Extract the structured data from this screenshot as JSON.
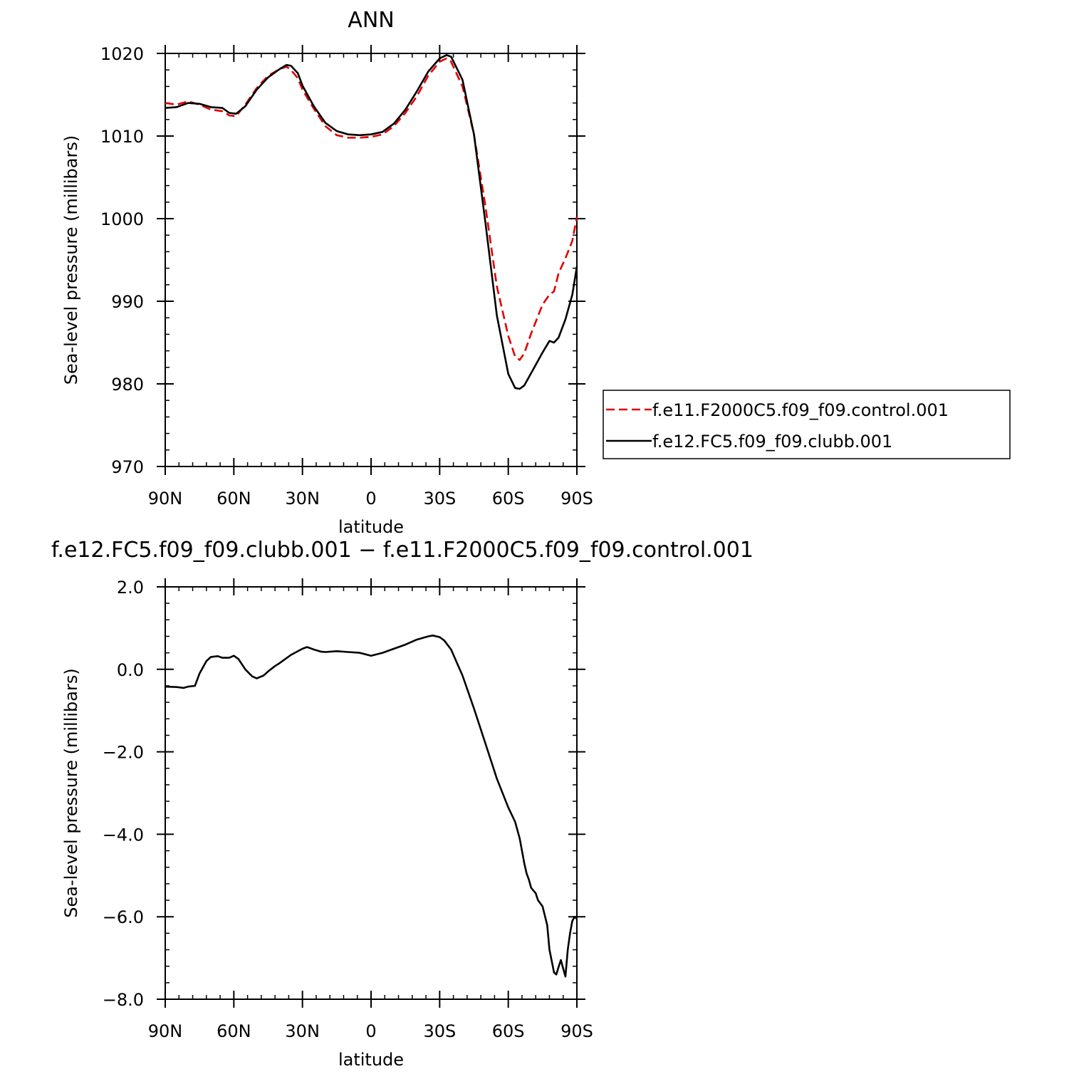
{
  "chart_data": [
    {
      "type": "line",
      "title": "ANN",
      "xlabel": "latitude",
      "ylabel": "Sea-level pressure (millibars)",
      "x_ticks": [
        "90N",
        "60N",
        "30N",
        "0",
        "30S",
        "60S",
        "90S"
      ],
      "y_ticks": [
        "970",
        "980",
        "990",
        "1000",
        "1010",
        "1020"
      ],
      "xlim": [
        90,
        -90
      ],
      "ylim": [
        970,
        1020
      ],
      "grid": false,
      "legend_position": "right",
      "series": [
        {
          "name": "f.e11.F2000C5.f09_f09.control.001",
          "color": "#e00000",
          "dash": "dashed",
          "x": [
            90,
            85,
            80,
            75,
            70,
            65,
            62,
            59,
            55,
            50,
            45,
            40,
            37,
            35,
            32,
            30,
            25,
            20,
            15,
            10,
            5,
            0,
            -5,
            -10,
            -15,
            -20,
            -25,
            -30,
            -33,
            -35,
            -40,
            -45,
            -50,
            -55,
            -60,
            -63,
            -65,
            -67,
            -70,
            -75,
            -78,
            -80,
            -82,
            -85,
            -88,
            -90
          ],
          "y": [
            1014,
            1013.8,
            1014.2,
            1013.8,
            1013.2,
            1013,
            1012.5,
            1012.4,
            1013.8,
            1015.8,
            1017.3,
            1018.1,
            1018.4,
            1018,
            1017,
            1015.6,
            1013.3,
            1011.2,
            1010.1,
            1009.8,
            1009.8,
            1009.9,
            1010.2,
            1011.2,
            1012.8,
            1014.8,
            1017.3,
            1019,
            1019.4,
            1019,
            1016,
            1010.2,
            1001.5,
            991.8,
            985.8,
            983.3,
            982.9,
            983.7,
            986.1,
            989.6,
            990.8,
            991.2,
            993.4,
            995.2,
            997.3,
            1000.2
          ]
        },
        {
          "name": "f.e12.FC5.f09_f09.clubb.001",
          "color": "#000000",
          "dash": "solid",
          "x": [
            90,
            85,
            80,
            75,
            70,
            65,
            62,
            59,
            55,
            50,
            45,
            40,
            37,
            35,
            32,
            30,
            25,
            20,
            15,
            10,
            5,
            0,
            -5,
            -10,
            -15,
            -20,
            -25,
            -30,
            -33,
            -35,
            -40,
            -45,
            -50,
            -55,
            -60,
            -63,
            -65,
            -67,
            -70,
            -75,
            -78,
            -80,
            -82,
            -85,
            -88,
            -90
          ],
          "y": [
            1013.4,
            1013.5,
            1014,
            1013.9,
            1013.5,
            1013.4,
            1012.8,
            1012.7,
            1013.6,
            1015.6,
            1017.1,
            1018.1,
            1018.6,
            1018.5,
            1017.6,
            1016.1,
            1013.6,
            1011.6,
            1010.6,
            1010.2,
            1010.1,
            1010.2,
            1010.5,
            1011.5,
            1013.2,
            1015.4,
            1017.8,
            1019.4,
            1019.8,
            1019.6,
            1016.8,
            1010.2,
            999.5,
            988.3,
            981.2,
            979.5,
            979.4,
            979.8,
            981.3,
            983.8,
            985.2,
            985,
            985.6,
            987.8,
            990.8,
            994.2
          ]
        }
      ]
    },
    {
      "type": "line",
      "title": "f.e12.FC5.f09_f09.clubb.001 − f.e11.F2000C5.f09_f09.control.001",
      "xlabel": "latitude",
      "ylabel": "Sea-level pressure (millibars)",
      "x_ticks": [
        "90N",
        "60N",
        "30N",
        "0",
        "30S",
        "60S",
        "90S"
      ],
      "y_ticks": [
        "−8.0",
        "−6.0",
        "−4.0",
        "−2.0",
        "0.0",
        "2.0"
      ],
      "xlim": [
        90,
        -90
      ],
      "ylim": [
        -8,
        2
      ],
      "grid": false,
      "series": [
        {
          "color": "#000000",
          "dash": "solid",
          "x": [
            90,
            85,
            82,
            80,
            77,
            75,
            72,
            70,
            67,
            65,
            62,
            60,
            58,
            55,
            52,
            50,
            47,
            45,
            42,
            40,
            35,
            30,
            28,
            25,
            22,
            20,
            15,
            10,
            5,
            0,
            -5,
            -10,
            -15,
            -20,
            -25,
            -27,
            -30,
            -32,
            -35,
            -38,
            -40,
            -45,
            -50,
            -55,
            -60,
            -63,
            -65,
            -67,
            -68,
            -69,
            -70,
            -72,
            -73,
            -75,
            -77,
            -78,
            -80,
            -81,
            -82,
            -83,
            -84,
            -85,
            -86,
            -87,
            -88,
            -89,
            -90
          ],
          "y": [
            -0.42,
            -0.43,
            -0.45,
            -0.42,
            -0.4,
            -0.1,
            0.2,
            0.3,
            0.32,
            0.28,
            0.28,
            0.33,
            0.25,
            0.0,
            -0.17,
            -0.22,
            -0.15,
            -0.05,
            0.08,
            0.15,
            0.35,
            0.5,
            0.54,
            0.48,
            0.43,
            0.42,
            0.44,
            0.42,
            0.4,
            0.33,
            0.4,
            0.5,
            0.6,
            0.72,
            0.8,
            0.82,
            0.78,
            0.7,
            0.48,
            0.1,
            -0.15,
            -0.95,
            -1.8,
            -2.65,
            -3.35,
            -3.7,
            -4.1,
            -4.7,
            -4.95,
            -5.1,
            -5.3,
            -5.43,
            -5.6,
            -5.75,
            -6.2,
            -6.8,
            -7.35,
            -7.4,
            -7.22,
            -7.05,
            -7.25,
            -7.45,
            -6.8,
            -6.4,
            -6.1,
            -6.0,
            -6.05
          ]
        }
      ]
    }
  ]
}
